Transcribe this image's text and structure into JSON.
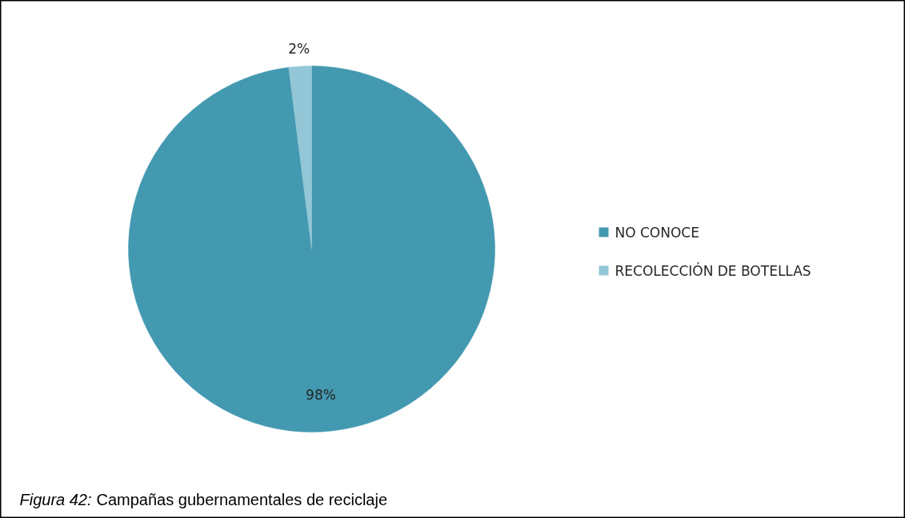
{
  "chart_data": {
    "type": "pie",
    "categories": [
      "NO CONOCE",
      "RECOLECCIÓN DE BOTELLAS"
    ],
    "values": [
      98,
      2
    ],
    "colors": [
      "#4399b0",
      "#93c6d6"
    ],
    "value_labels": [
      "98%",
      "2%"
    ],
    "legend": "right",
    "annotations": [
      "Figura 42: Campañas gubernamentales de reciclaje"
    ]
  }
}
